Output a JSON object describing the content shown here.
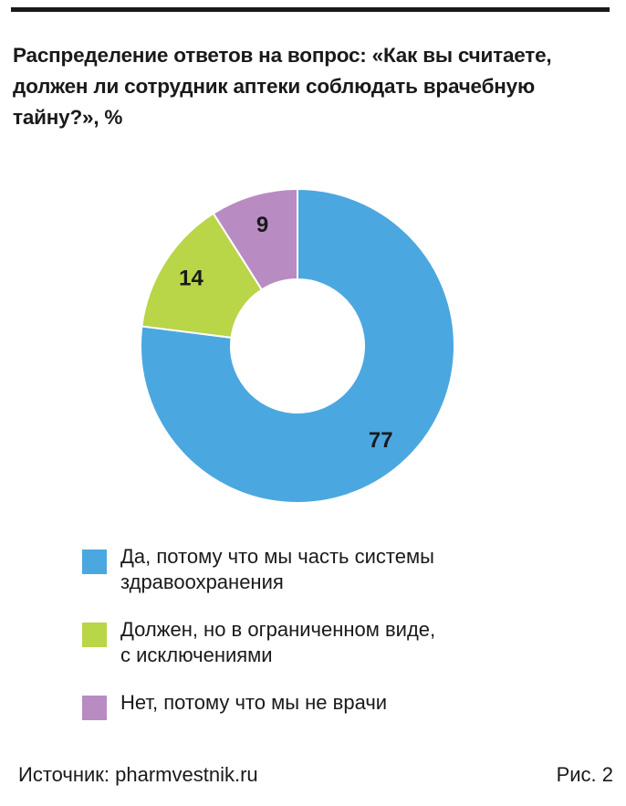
{
  "title": "Распределение ответов на вопрос: «Как вы считаете, должен ли сотрудник аптеки соблюдать врачебную тайну?», %",
  "chart_data": {
    "type": "pie",
    "donut": true,
    "title": "Распределение ответов на вопрос: «Как вы считаете, должен ли сотрудник аптеки соблюдать врачебную тайну?», %",
    "unit": "%",
    "legend_position": "bottom",
    "slices": [
      {
        "label": "Да, потому что мы часть системы здравоохранения",
        "value": 77,
        "color": "#4ba7e0"
      },
      {
        "label": "Должен, но в ограниченном виде, с исключениями",
        "value": 14,
        "color": "#b9d548"
      },
      {
        "label": "Нет, потому что мы не врачи",
        "value": 9,
        "color": "#b98bc3"
      }
    ]
  },
  "legend": [
    {
      "line1": "Да, потому что мы часть системы",
      "line2": "здравоохранения",
      "color": "#4ba7e0"
    },
    {
      "line1": "Должен, но в ограниченном виде,",
      "line2": "с исключениями",
      "color": "#b9d548"
    },
    {
      "line1": "Нет, потому что мы не врачи",
      "line2": "",
      "color": "#b98bc3"
    }
  ],
  "footer": {
    "source": "Источник: pharmvestnik.ru",
    "figure": "Рис. 2"
  }
}
